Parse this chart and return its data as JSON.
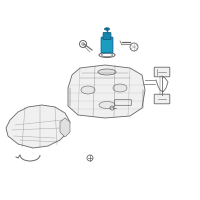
{
  "bg_color": "#ffffff",
  "line_color": "#666666",
  "highlight_color": "#1a9dbf",
  "fig_size": [
    2.0,
    2.0
  ],
  "dpi": 100
}
